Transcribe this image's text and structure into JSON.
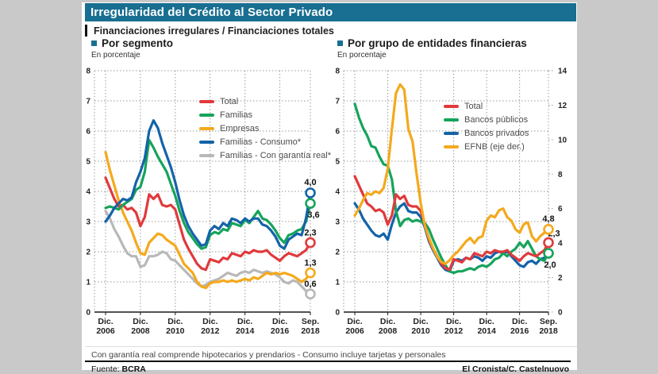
{
  "header": {
    "title": "Irregularidad del Crédito al Sector Privado",
    "subtitle": "Financiaciones irregulares / Financiaciones totales"
  },
  "footer": {
    "note": "Con garantía real comprende hipotecarios y prendarios - Consumo incluye tarjetas y personales",
    "source_label": "Fuente:",
    "source": "BCRA",
    "credit": "El Cronista/C. Castelnuovo"
  },
  "colors": {
    "accent_teal": "#186F91",
    "red": "#E03A3C",
    "green": "#15A45B",
    "orange": "#F4A91C",
    "blue": "#1463A8",
    "gray": "#B8B8B8",
    "grid": "#9a9a9a",
    "axis": "#1a1a1a",
    "page_bg": "#c9c9c9"
  },
  "chart_data": [
    {
      "type": "line",
      "title": "Por segmento",
      "subtitle": "En porcentaje",
      "x_start": 2006.92,
      "x_step": 0.25,
      "x_ticks": [
        {
          "line1": "Dic.",
          "line2": "2006",
          "year": 2006.92
        },
        {
          "line1": "Dic.",
          "line2": "2008",
          "year": 2008.92
        },
        {
          "line1": "Dic.",
          "line2": "2010",
          "year": 2010.92
        },
        {
          "line1": "Dic.",
          "line2": "2012",
          "year": 2012.92
        },
        {
          "line1": "Dic.",
          "line2": "2014",
          "year": 2014.92
        },
        {
          "line1": "Dic.",
          "line2": "2016",
          "year": 2016.92
        },
        {
          "line1": "Sep.",
          "line2": "2018",
          "year": 2018.67
        }
      ],
      "left_axis": {
        "min": 0,
        "max": 8,
        "step": 1
      },
      "right_axis": null,
      "series": [
        {
          "name": "Total",
          "color": "#E03A3C",
          "axis": "left",
          "z": 3,
          "end_label": "2,3",
          "end_circle": true,
          "label_dx": 0,
          "label_dy": -9,
          "values": [
            4.45,
            4.1,
            3.75,
            3.5,
            3.55,
            3.4,
            3.45,
            3.3,
            2.85,
            3.15,
            3.9,
            3.75,
            3.9,
            3.55,
            3.5,
            3.55,
            3.4,
            2.9,
            2.4,
            2.1,
            1.85,
            1.6,
            1.45,
            1.4,
            1.75,
            1.7,
            1.65,
            1.8,
            1.75,
            1.95,
            1.9,
            1.85,
            2.0,
            1.95,
            2.05,
            2.0,
            2.0,
            2.05,
            1.9,
            1.8,
            1.7,
            1.85,
            1.95,
            1.9,
            1.85,
            1.95,
            2.05,
            2.3
          ]
        },
        {
          "name": "Familias",
          "color": "#15A45B",
          "axis": "left",
          "z": 4,
          "end_label": "3,6",
          "end_circle": true,
          "label_dx": 4,
          "label_dy": 18,
          "values": [
            3.45,
            3.5,
            3.45,
            3.4,
            3.55,
            3.65,
            3.75,
            4.05,
            4.15,
            4.65,
            5.7,
            5.45,
            5.15,
            4.9,
            4.65,
            4.25,
            3.85,
            3.35,
            2.95,
            2.65,
            2.45,
            2.25,
            2.1,
            2.15,
            2.55,
            2.65,
            2.6,
            2.75,
            2.7,
            2.95,
            2.9,
            2.85,
            3.05,
            2.95,
            3.15,
            3.35,
            3.1,
            3.05,
            2.9,
            2.7,
            2.45,
            2.3,
            2.55,
            2.6,
            2.7,
            2.75,
            3.0,
            3.6
          ]
        },
        {
          "name": "Empresas",
          "color": "#F4A91C",
          "axis": "left",
          "z": 2,
          "end_label": "1,3",
          "end_circle": true,
          "label_dx": 0,
          "label_dy": -9,
          "values": [
            5.3,
            4.7,
            4.2,
            3.7,
            3.3,
            3.0,
            2.7,
            2.3,
            1.95,
            1.9,
            2.3,
            2.45,
            2.6,
            2.55,
            2.4,
            2.3,
            2.2,
            1.9,
            1.6,
            1.45,
            1.3,
            1.0,
            0.85,
            0.8,
            0.95,
            1.0,
            1.0,
            1.05,
            1.0,
            1.05,
            1.0,
            1.05,
            1.1,
            1.05,
            1.15,
            1.1,
            1.2,
            1.3,
            1.25,
            1.3,
            1.25,
            1.3,
            1.25,
            1.2,
            1.1,
            1.0,
            1.1,
            1.3
          ]
        },
        {
          "name": "Familias - Consumo*",
          "color": "#1463A8",
          "axis": "left",
          "z": 5,
          "end_label": "4,0",
          "end_circle": true,
          "label_dx": 0,
          "label_dy": -10,
          "values": [
            3.0,
            3.2,
            3.45,
            3.6,
            3.75,
            3.7,
            3.8,
            4.3,
            4.65,
            5.1,
            6.0,
            6.35,
            6.1,
            5.6,
            5.2,
            4.8,
            4.3,
            3.7,
            3.2,
            2.85,
            2.6,
            2.4,
            2.2,
            2.25,
            2.7,
            2.85,
            2.75,
            2.95,
            2.85,
            3.1,
            3.05,
            2.95,
            3.1,
            3.0,
            3.1,
            3.1,
            2.9,
            2.85,
            2.7,
            2.5,
            2.2,
            2.1,
            2.4,
            2.5,
            2.6,
            2.55,
            3.1,
            3.95
          ]
        },
        {
          "name": "Familias - Con garantía real*",
          "color": "#B8B8B8",
          "axis": "left",
          "z": 1,
          "end_label": "0,6",
          "end_circle": true,
          "label_dx": 0,
          "label_dy": -9,
          "values": [
            3.35,
            3.1,
            2.75,
            2.5,
            2.2,
            1.95,
            1.85,
            1.85,
            1.5,
            1.55,
            1.85,
            1.85,
            1.9,
            2.0,
            1.95,
            1.75,
            1.7,
            1.55,
            1.4,
            1.25,
            1.1,
            0.95,
            0.85,
            0.9,
            1.0,
            1.05,
            1.1,
            1.2,
            1.3,
            1.25,
            1.2,
            1.3,
            1.35,
            1.3,
            1.4,
            1.35,
            1.3,
            1.35,
            1.3,
            1.25,
            1.15,
            1.0,
            0.95,
            1.05,
            1.0,
            0.85,
            0.7,
            0.6
          ]
        }
      ]
    },
    {
      "type": "line",
      "title": "Por grupo de entidades financieras",
      "subtitle": "En porcentaje",
      "x_start": 2006.92,
      "x_step": 0.25,
      "x_ticks": [
        {
          "line1": "Dic.",
          "line2": "2006",
          "year": 2006.92
        },
        {
          "line1": "Dic.",
          "line2": "2008",
          "year": 2008.92
        },
        {
          "line1": "Dic.",
          "line2": "2010",
          "year": 2010.92
        },
        {
          "line1": "Dic.",
          "line2": "2012",
          "year": 2012.92
        },
        {
          "line1": "Dic.",
          "line2": "2014",
          "year": 2014.92
        },
        {
          "line1": "Dic.",
          "line2": "2016",
          "year": 2016.92
        },
        {
          "line1": "Sep.",
          "line2": "2018",
          "year": 2018.67
        }
      ],
      "left_axis": {
        "min": 0,
        "max": 8,
        "step": 1
      },
      "right_axis": {
        "min": 0,
        "max": 14,
        "step": 2
      },
      "series": [
        {
          "name": "Total",
          "color": "#E03A3C",
          "axis": "left",
          "z": 3,
          "end_label": "2,3",
          "end_circle": true,
          "label_dx": 7,
          "label_dy": -8,
          "values": [
            4.5,
            4.2,
            3.9,
            3.6,
            3.5,
            3.35,
            3.4,
            3.3,
            2.9,
            3.2,
            3.9,
            3.75,
            3.85,
            3.55,
            3.5,
            3.5,
            3.35,
            2.9,
            2.4,
            2.1,
            1.85,
            1.6,
            1.45,
            1.4,
            1.75,
            1.7,
            1.65,
            1.8,
            1.75,
            1.95,
            1.9,
            1.85,
            2.0,
            1.95,
            2.05,
            2.0,
            2.0,
            2.05,
            1.9,
            1.8,
            1.7,
            1.85,
            1.95,
            1.9,
            1.85,
            1.95,
            2.05,
            2.3
          ]
        },
        {
          "name": "Bancos públicos",
          "color": "#15A45B",
          "axis": "left",
          "z": 2,
          "end_label": "2,0",
          "end_circle": true,
          "label_dx": 2,
          "label_dy": 18,
          "values": [
            6.9,
            6.45,
            6.1,
            5.85,
            5.5,
            5.45,
            5.15,
            4.9,
            4.85,
            4.4,
            3.35,
            2.85,
            3.05,
            3.1,
            3.0,
            3.05,
            3.0,
            2.95,
            2.75,
            2.4,
            2.1,
            1.8,
            1.55,
            1.35,
            1.3,
            1.35,
            1.35,
            1.4,
            1.45,
            1.4,
            1.5,
            1.55,
            1.5,
            1.6,
            1.75,
            1.8,
            1.95,
            1.85,
            2.0,
            2.1,
            2.3,
            2.15,
            2.35,
            2.1,
            1.85,
            1.75,
            1.7,
            1.95
          ]
        },
        {
          "name": "Bancos privados",
          "color": "#1463A8",
          "axis": "left",
          "z": 1,
          "end_label": "",
          "end_circle": false,
          "label_dx": 0,
          "label_dy": 0,
          "values": [
            3.6,
            3.4,
            3.1,
            2.9,
            2.7,
            2.55,
            2.5,
            2.6,
            2.4,
            2.9,
            3.3,
            3.5,
            3.6,
            3.35,
            3.3,
            3.3,
            3.15,
            2.8,
            2.35,
            2.05,
            1.8,
            1.55,
            1.4,
            1.35,
            1.7,
            1.75,
            1.7,
            1.8,
            1.75,
            1.85,
            1.8,
            1.7,
            1.85,
            1.8,
            1.95,
            2.0,
            1.95,
            2.0,
            1.85,
            1.7,
            1.55,
            1.5,
            1.65,
            1.7,
            1.6,
            1.75,
            1.8,
            1.9
          ]
        },
        {
          "name": "EFNB (eje der.)",
          "color": "#F4A91C",
          "axis": "right",
          "z": 4,
          "end_label": "4,8",
          "end_circle": true,
          "label_dx": 0,
          "label_dy": -10,
          "values": [
            5.6,
            6.0,
            6.5,
            6.9,
            6.8,
            7.0,
            6.9,
            7.2,
            8.3,
            10.6,
            12.7,
            13.2,
            12.9,
            10.6,
            9.9,
            8.0,
            6.3,
            5.0,
            4.3,
            3.7,
            3.2,
            2.9,
            2.8,
            3.0,
            3.3,
            3.5,
            3.8,
            4.1,
            4.3,
            4.0,
            4.3,
            4.4,
            5.3,
            5.6,
            5.5,
            5.9,
            6.0,
            5.5,
            5.3,
            4.8,
            4.6,
            5.1,
            5.2,
            4.4,
            4.1,
            4.4,
            4.6,
            4.8
          ]
        }
      ]
    }
  ]
}
